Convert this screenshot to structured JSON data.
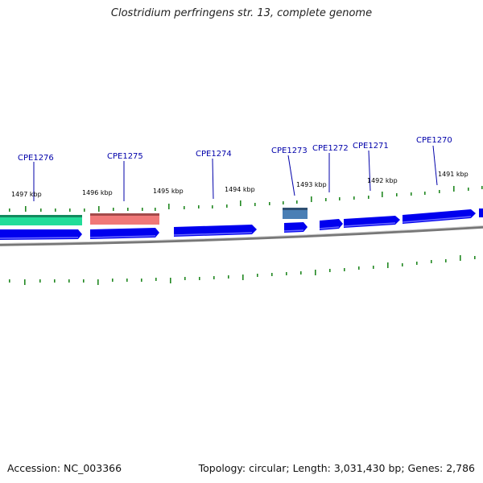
{
  "title": "Clostridium perfringens str. 13, complete genome",
  "footer": {
    "accession": "Accession: NC_003366",
    "stats": "Topology: circular; Length: 3,031,430 bp; Genes: 2,786"
  },
  "colors": {
    "cds": "#0000ee",
    "trna_green": "#22dd99",
    "rrna_pink": "#f07878",
    "misc_steelblue": "#4a7fb5",
    "ticks": "#228822",
    "labels": "#0000aa",
    "backbone": "#808080"
  },
  "kbp_labels": [
    "1497 kbp",
    "1496 kbp",
    "1495 kbp",
    "1494 kbp",
    "1493 kbp",
    "1492 kbp",
    "1491 kbp"
  ],
  "gene_labels": [
    "CPE1276",
    "CPE1275",
    "CPE1274",
    "CPE1273",
    "CPE1272",
    "CPE1271",
    "CPE1270"
  ]
}
